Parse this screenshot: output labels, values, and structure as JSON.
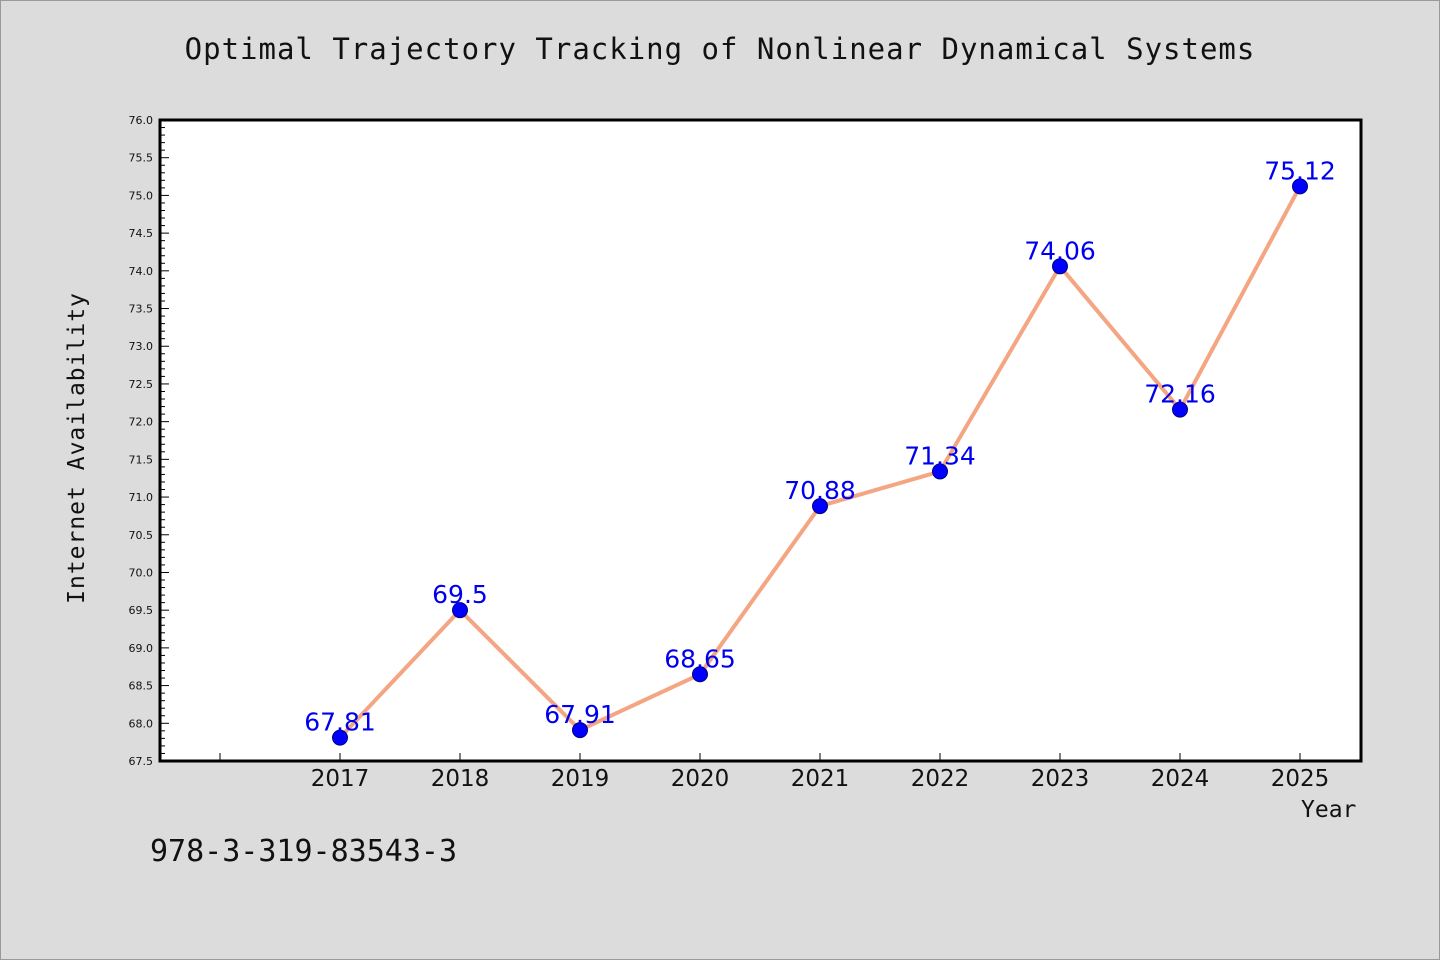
{
  "chart_data": {
    "type": "line",
    "title": "Optimal Trajectory Tracking of Nonlinear Dynamical Systems",
    "xlabel": "Year",
    "ylabel": "Internet Availability",
    "categories": [
      "2017",
      "2018",
      "2019",
      "2020",
      "2021",
      "2022",
      "2023",
      "2024",
      "2025"
    ],
    "series": [
      {
        "values": [
          67.81,
          69.5,
          67.91,
          68.65,
          70.88,
          71.34,
          74.06,
          72.16,
          75.12
        ],
        "data_labels": [
          "67.81",
          "69.5",
          "67.91",
          "68.65",
          "70.88",
          "71.34",
          "74.06",
          "72.16",
          "75.12"
        ],
        "line_color": "#f4a582",
        "marker_color": "#0000ff",
        "label_color": "#0000ee"
      }
    ],
    "ylim": [
      67.5,
      76.0
    ],
    "yticks": [
      "67.5",
      "68.0",
      "68.5",
      "69.0",
      "69.5",
      "70.0",
      "70.5",
      "71.0",
      "71.5",
      "72.0",
      "72.5",
      "73.0",
      "73.5",
      "74.0",
      "74.5",
      "75.0",
      "75.5",
      "76.0"
    ],
    "grid": false,
    "legend": "none"
  },
  "footer": {
    "isbn": "978-3-319-83543-3"
  },
  "colors": {
    "background": "#dcdcdc",
    "plot_background": "#ffffff",
    "axis": "#000000"
  }
}
